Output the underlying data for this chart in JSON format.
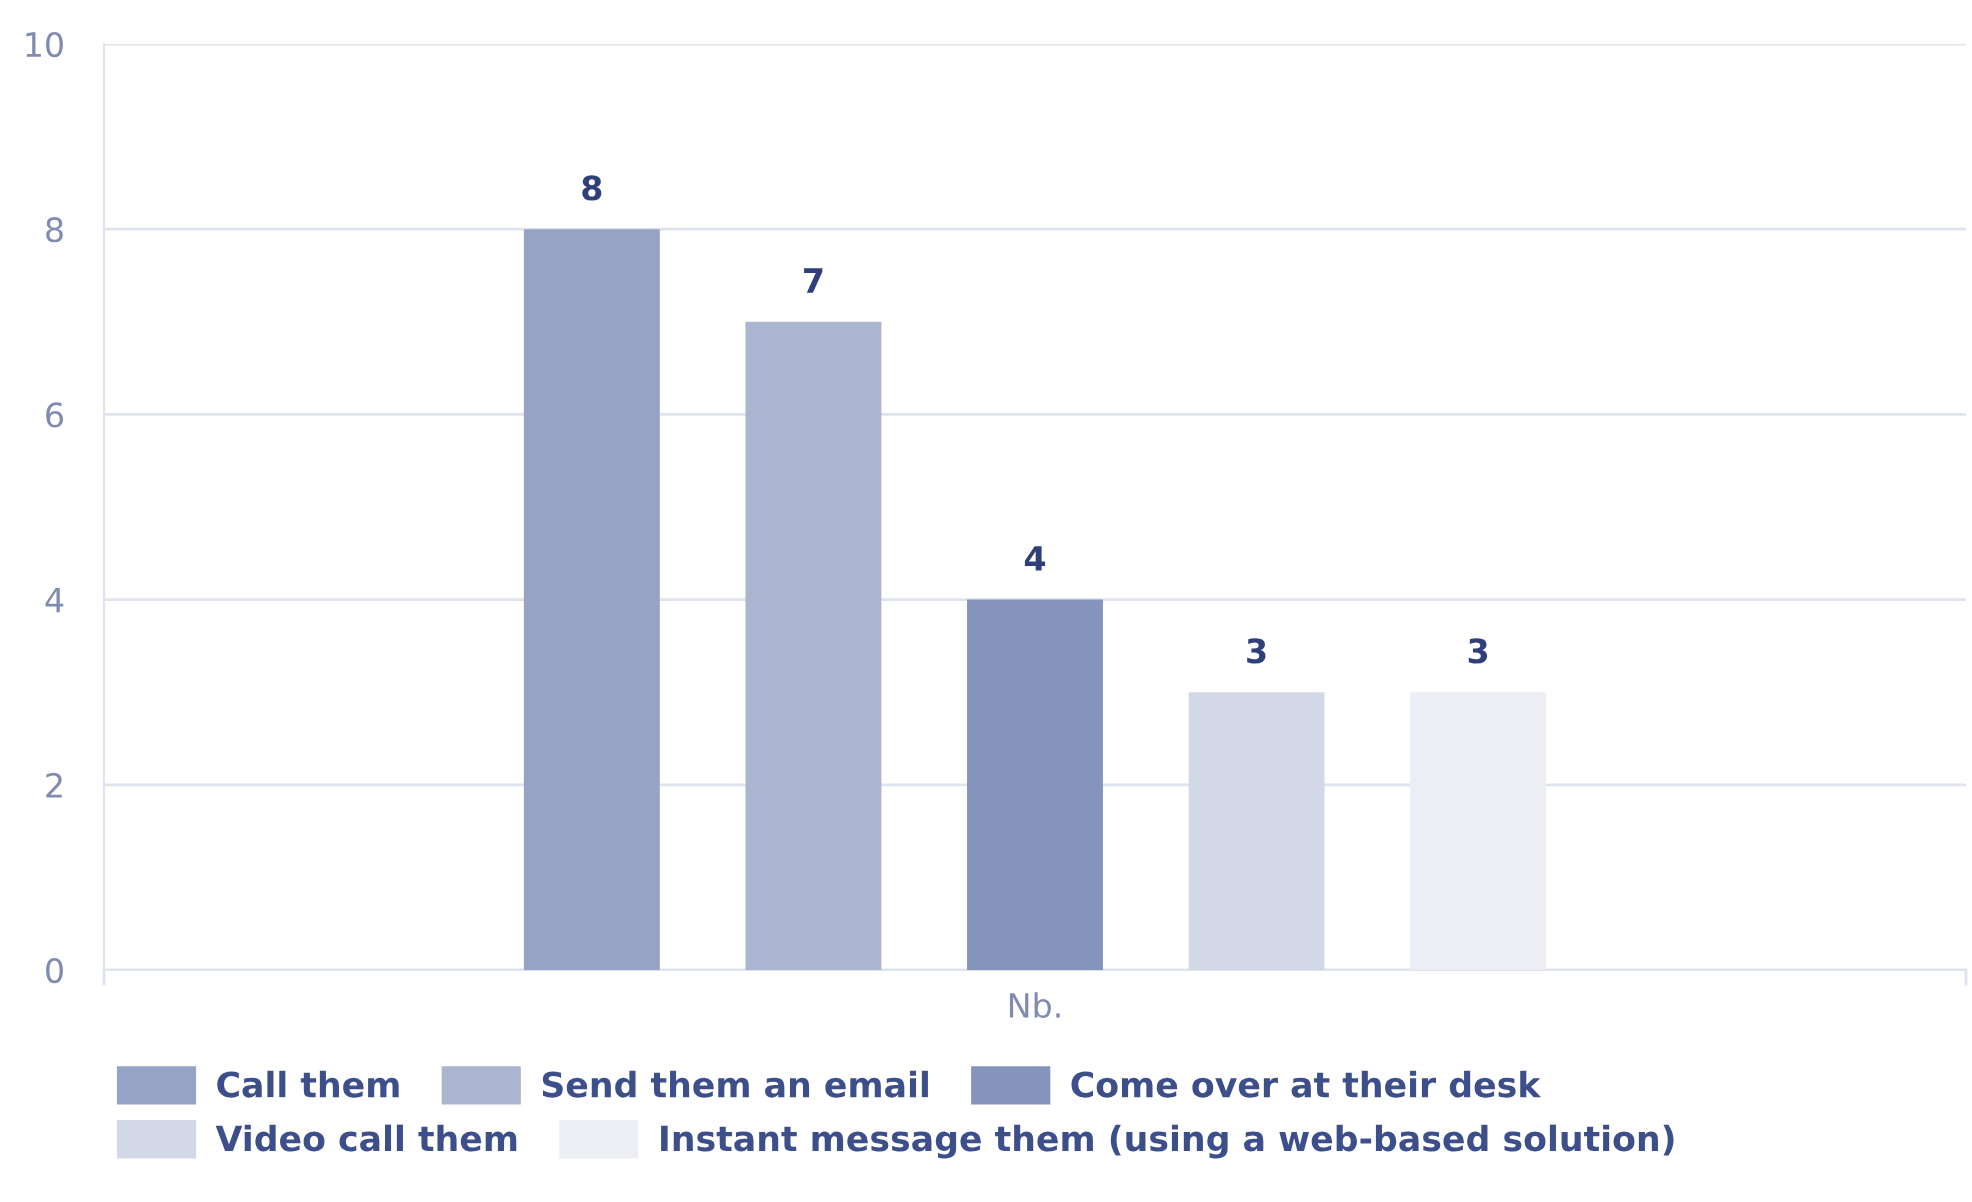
{
  "chart_data": {
    "type": "bar",
    "categories": [
      "Nb."
    ],
    "series": [
      {
        "name": "Call them",
        "color": "#97a3c5",
        "values": [
          8
        ]
      },
      {
        "name": "Send them an email",
        "color": "#abb5d0",
        "values": [
          7
        ]
      },
      {
        "name": "Come over at their desk",
        "color": "#8594bb",
        "values": [
          4
        ]
      },
      {
        "name": "Video call them",
        "color": "#d3d8e6",
        "values": [
          3
        ]
      },
      {
        "name": "Instant message them (using a web-based solution)",
        "color": "#eceef4",
        "values": [
          3
        ]
      }
    ],
    "ylim": [
      0,
      10
    ],
    "yticks": [
      0,
      2,
      4,
      6,
      8,
      10
    ],
    "grid": "y",
    "legend": "bottom",
    "data_labels": true
  }
}
